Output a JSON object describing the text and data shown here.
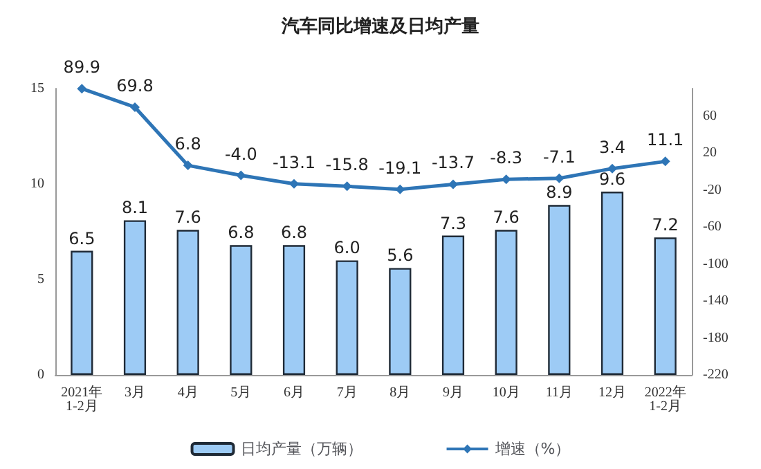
{
  "chart_data": {
    "type": "bar",
    "title": "汽车同比增速及日均产量",
    "categories": [
      "2021年\n1-2月",
      "3月",
      "4月",
      "5月",
      "6月",
      "7月",
      "8月",
      "9月",
      "10月",
      "11月",
      "12月",
      "2022年\n1-2月"
    ],
    "series": [
      {
        "name": "日均产量（万辆）",
        "color": "#9dcbf5",
        "values": [
          6.5,
          8.1,
          7.6,
          6.8,
          6.8,
          6.0,
          5.6,
          7.3,
          7.6,
          8.9,
          9.6,
          7.2
        ],
        "value_labels": [
          "6.5",
          "8.1",
          "7.6",
          "6.8",
          "6.8",
          "6.0",
          "5.6",
          "7.3",
          "7.6",
          "8.9",
          "9.6",
          "7.2"
        ]
      },
      {
        "name": "增速（%）",
        "type": "line",
        "axis": "y2",
        "color": "#2e75b6",
        "marker": "diamond",
        "values": [
          89.9,
          69.8,
          6.8,
          -4.0,
          -13.1,
          -15.8,
          -19.1,
          -13.7,
          -8.3,
          -7.1,
          3.4,
          11.1
        ],
        "value_labels": [
          "89.9",
          "69.8",
          "6.8",
          "-4.0",
          "-13.1",
          "-15.8",
          "-19.1",
          "-13.7",
          "-8.3",
          "-7.1",
          "3.4",
          "11.1"
        ]
      }
    ],
    "ylim": [
      0,
      15
    ],
    "yticks": [
      0,
      5,
      10,
      15
    ],
    "y2lim": [
      -220,
      90
    ],
    "y2ticks": [
      -220,
      -180,
      -140,
      -100,
      -60,
      -20,
      20,
      60
    ],
    "grid": false,
    "legend": "bottom"
  }
}
